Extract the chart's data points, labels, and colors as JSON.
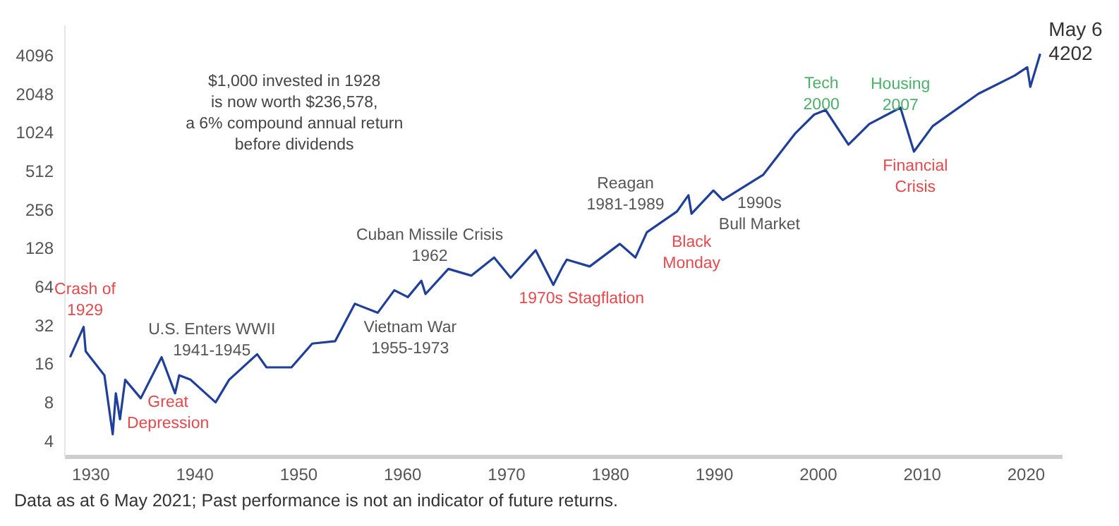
{
  "chart_data": {
    "type": "line",
    "log": "y",
    "xlim": [
      1927.5,
      2023.5
    ],
    "xticks": [
      1930,
      1940,
      1950,
      1960,
      1970,
      1980,
      1990,
      2000,
      2010,
      2020
    ],
    "ylim": [
      3,
      7000
    ],
    "yticks": [
      4,
      8,
      16,
      32,
      64,
      128,
      256,
      512,
      1024,
      2048,
      4096
    ],
    "series": [
      {
        "color": "#1f3f99",
        "x": [
          1928.0,
          1929.3,
          1929.5,
          1931.3,
          1932.1,
          1932.4,
          1932.8,
          1933.3,
          1934.8,
          1936.8,
          1938.1,
          1938.5,
          1939.6,
          1942.0,
          1943.3,
          1946.0,
          1946.9,
          1949.3,
          1951.3,
          1953.5,
          1955.4,
          1957.6,
          1959.2,
          1960.5,
          1961.8,
          1962.2,
          1964.4,
          1966.6,
          1968.8,
          1970.4,
          1972.8,
          1974.5,
          1975.4,
          1975.8,
          1978.0,
          1980.9,
          1982.4,
          1983.5,
          1986.4,
          1987.5,
          1987.8,
          1989.9,
          1990.8,
          1994.7,
          1997.8,
          1999.6,
          2000.7,
          2002.9,
          2004.9,
          2007.9,
          2009.2,
          2011.0,
          2015.4,
          2018.9,
          2020.1,
          2020.4,
          2021.35
        ],
        "values": [
          18,
          31,
          20,
          13,
          4.5,
          9.4,
          5.9,
          12,
          8.6,
          18,
          9.4,
          13,
          12,
          8,
          12,
          19,
          15,
          15,
          23,
          24,
          47,
          40,
          60,
          53,
          71,
          56,
          88,
          78,
          108,
          75,
          123,
          66,
          92,
          104,
          92,
          138,
          108,
          170,
          247,
          331,
          237,
          360,
          304,
          478,
          1010,
          1409,
          1530,
          820,
          1190,
          1595,
          724,
          1145,
          2048,
          2840,
          3300,
          2320,
          4202
        ]
      }
    ],
    "annotations": [
      {
        "text": "Crash of\n1929",
        "x": 1929.3,
        "y": 31
      },
      {
        "text": "Great\nDepression",
        "x": 1938.1,
        "y": 9.4
      },
      {
        "text": "U.S. Enters WWII\n1941-1945",
        "x": 1939.6,
        "y": 12
      },
      {
        "text": "Cuban Missile Crisis\n1962",
        "x": 1962.2,
        "y": 56
      },
      {
        "text": "Vietnam War\n1955-1973",
        "x": 1957.6,
        "y": 40
      },
      {
        "text": "1970s Stagflation",
        "x": 1974.5,
        "y": 66
      },
      {
        "text": "Reagan\n1981-1989",
        "x": 1980.9,
        "y": 138
      },
      {
        "text": "Black\nMonday",
        "x": 1987.8,
        "y": 237
      },
      {
        "text": "1990s\nBull Market",
        "x": 1990.8,
        "y": 304
      },
      {
        "text": "Tech\n2000",
        "x": 2000.7,
        "y": 1530
      },
      {
        "text": "Housing\n2007",
        "x": 2007.9,
        "y": 1595
      },
      {
        "text": "Financial\nCrisis",
        "x": 2009.2,
        "y": 724
      },
      {
        "text": "May 6\n4202",
        "x": 2021.35,
        "y": 4202
      },
      "$1,000 invested in 1928\nis now worth $236,578,\na 6% compound annual return\nbefore dividends",
      "Data as at 6 May 2021; Past performance is not an indicator of future returns."
    ]
  }
}
